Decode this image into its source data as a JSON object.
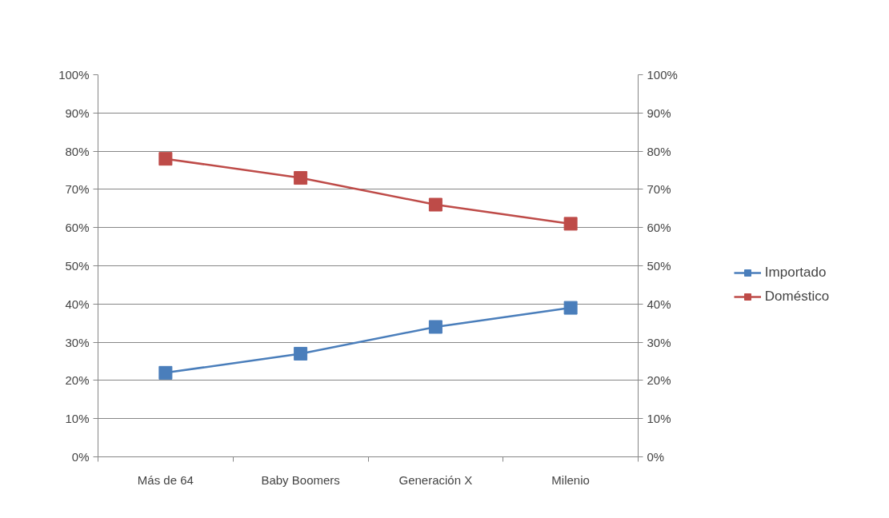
{
  "chart_data": {
    "type": "line",
    "categories": [
      "Más de 64",
      "Baby Boomers",
      "Generación X",
      "Milenio"
    ],
    "series": [
      {
        "name": "Importado",
        "color": "#4a7ebb",
        "values": [
          22,
          27,
          34,
          39
        ]
      },
      {
        "name": "Doméstico",
        "color": "#be4b48",
        "values": [
          78,
          73,
          66,
          61
        ]
      }
    ],
    "ylim": [
      0,
      100
    ],
    "yticks": [
      {
        "value": 0,
        "label": "0%"
      },
      {
        "value": 10,
        "label": "10%"
      },
      {
        "value": 20,
        "label": "20%"
      },
      {
        "value": 30,
        "label": "30%"
      },
      {
        "value": 40,
        "label": "40%"
      },
      {
        "value": 50,
        "label": "50%"
      },
      {
        "value": 60,
        "label": "60%"
      },
      {
        "value": 70,
        "label": "70%"
      },
      {
        "value": 80,
        "label": "80%"
      },
      {
        "value": 90,
        "label": "90%"
      },
      {
        "value": 100,
        "label": "100%"
      }
    ],
    "y2lim": [
      0,
      100
    ],
    "y2ticks": [
      {
        "value": 0,
        "label": "0%"
      },
      {
        "value": 10,
        "label": "10%"
      },
      {
        "value": 20,
        "label": "20%"
      },
      {
        "value": 30,
        "label": "30%"
      },
      {
        "value": 40,
        "label": "40%"
      },
      {
        "value": 50,
        "label": "50%"
      },
      {
        "value": 60,
        "label": "60%"
      },
      {
        "value": 70,
        "label": "70%"
      },
      {
        "value": 80,
        "label": "80%"
      },
      {
        "value": 90,
        "label": "90%"
      },
      {
        "value": 100,
        "label": "100%"
      }
    ],
    "grid": "y",
    "legend": "right",
    "marker": "square",
    "line_style": "solid"
  }
}
